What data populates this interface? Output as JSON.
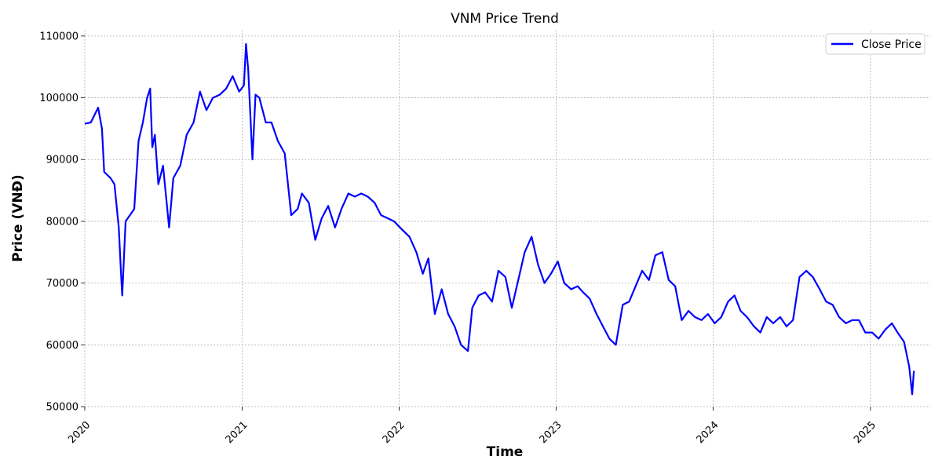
{
  "chart_data": {
    "type": "line",
    "title": "VNM Price Trend",
    "xlabel": "Time",
    "ylabel": "Price (VNĐ)",
    "xlim": [
      "2020-01-01",
      "2025-05-20"
    ],
    "ylim": [
      50000,
      111000
    ],
    "x_ticks": [
      "2020",
      "2021",
      "2022",
      "2023",
      "2024",
      "2025"
    ],
    "y_ticks": [
      "50000",
      "60000",
      "70000",
      "80000",
      "90000",
      "100000",
      "110000"
    ],
    "grid": true,
    "legend_position": "top-right",
    "series": [
      {
        "name": "Close Price",
        "color": "#0000ff",
        "x": [
          "2020-01-01",
          "2020-01-15",
          "2020-02-01",
          "2020-02-10",
          "2020-02-15",
          "2020-03-01",
          "2020-03-10",
          "2020-03-20",
          "2020-03-25",
          "2020-03-28",
          "2020-04-05",
          "2020-04-15",
          "2020-04-25",
          "2020-05-05",
          "2020-05-15",
          "2020-05-25",
          "2020-06-01",
          "2020-06-06",
          "2020-06-12",
          "2020-06-20",
          "2020-07-01",
          "2020-07-15",
          "2020-07-25",
          "2020-08-10",
          "2020-08-25",
          "2020-09-10",
          "2020-09-25",
          "2020-10-10",
          "2020-10-25",
          "2020-11-10",
          "2020-11-25",
          "2020-12-10",
          "2020-12-25",
          "2021-01-05",
          "2021-01-10",
          "2021-01-15",
          "2021-01-25",
          "2021-02-01",
          "2021-02-10",
          "2021-02-25",
          "2021-03-10",
          "2021-03-25",
          "2021-04-10",
          "2021-04-25",
          "2021-05-10",
          "2021-05-20",
          "2021-06-05",
          "2021-06-20",
          "2021-07-05",
          "2021-07-20",
          "2021-08-05",
          "2021-08-20",
          "2021-09-05",
          "2021-09-20",
          "2021-10-05",
          "2021-10-20",
          "2021-11-05",
          "2021-11-20",
          "2021-12-05",
          "2021-12-20",
          "2022-01-10",
          "2022-01-25",
          "2022-02-10",
          "2022-02-25",
          "2022-03-10",
          "2022-03-25",
          "2022-04-10",
          "2022-04-25",
          "2022-05-10",
          "2022-05-25",
          "2022-06-10",
          "2022-06-20",
          "2022-07-05",
          "2022-07-20",
          "2022-08-05",
          "2022-08-20",
          "2022-09-05",
          "2022-09-20",
          "2022-10-05",
          "2022-10-20",
          "2022-11-05",
          "2022-11-20",
          "2022-12-05",
          "2022-12-20",
          "2023-01-05",
          "2023-01-20",
          "2023-02-05",
          "2023-02-20",
          "2023-03-05",
          "2023-03-20",
          "2023-04-05",
          "2023-04-20",
          "2023-05-05",
          "2023-05-20",
          "2023-06-05",
          "2023-06-20",
          "2023-07-05",
          "2023-07-20",
          "2023-08-05",
          "2023-08-20",
          "2023-09-05",
          "2023-09-20",
          "2023-10-05",
          "2023-10-20",
          "2023-11-05",
          "2023-11-20",
          "2023-12-05",
          "2023-12-20",
          "2024-01-05",
          "2024-01-20",
          "2024-02-05",
          "2024-02-20",
          "2024-03-05",
          "2024-03-20",
          "2024-04-05",
          "2024-04-20",
          "2024-05-05",
          "2024-05-20",
          "2024-06-05",
          "2024-06-20",
          "2024-07-05",
          "2024-07-20",
          "2024-08-05",
          "2024-08-20",
          "2024-09-05",
          "2024-09-20",
          "2024-10-05",
          "2024-10-20",
          "2024-11-05",
          "2024-11-20",
          "2024-12-05",
          "2024-12-20",
          "2025-01-05",
          "2025-01-20",
          "2025-02-05",
          "2025-02-20",
          "2025-03-05",
          "2025-03-20",
          "2025-04-01",
          "2025-04-08",
          "2025-04-12"
        ],
        "y": [
          95800,
          96000,
          98400,
          95000,
          88000,
          87000,
          86000,
          79000,
          72000,
          68000,
          80000,
          81000,
          82000,
          93000,
          96000,
          100000,
          101500,
          92000,
          94000,
          86000,
          89000,
          79000,
          87000,
          89000,
          94000,
          96000,
          101000,
          98000,
          100000,
          100500,
          101500,
          103500,
          101000,
          102000,
          108700,
          104500,
          90000,
          100500,
          100000,
          96000,
          96000,
          93000,
          91000,
          81000,
          82000,
          84500,
          83000,
          77000,
          80500,
          82500,
          79000,
          82000,
          84500,
          84000,
          84500,
          84000,
          83000,
          81000,
          80500,
          80000,
          78500,
          77500,
          75000,
          71500,
          74000,
          65000,
          69000,
          65000,
          63000,
          60000,
          59000,
          66000,
          68000,
          68500,
          67000,
          72000,
          71000,
          66000,
          70500,
          75000,
          77500,
          73000,
          70000,
          71500,
          73500,
          70000,
          69000,
          69500,
          68500,
          67500,
          65000,
          63000,
          61000,
          60000,
          66500,
          67000,
          69500,
          72000,
          70500,
          74500,
          75000,
          70500,
          69500,
          64000,
          65500,
          64500,
          64000,
          65000,
          63500,
          64500,
          67000,
          68000,
          65500,
          64500,
          63000,
          62000,
          64500,
          63500,
          64500,
          63000,
          64000,
          71000,
          72000,
          71000,
          69000,
          67000,
          66500,
          64500,
          63500,
          64000,
          64000,
          62000,
          62000,
          61000,
          62500,
          63500,
          62000,
          60500,
          56500,
          52000,
          55800
        ]
      }
    ]
  }
}
